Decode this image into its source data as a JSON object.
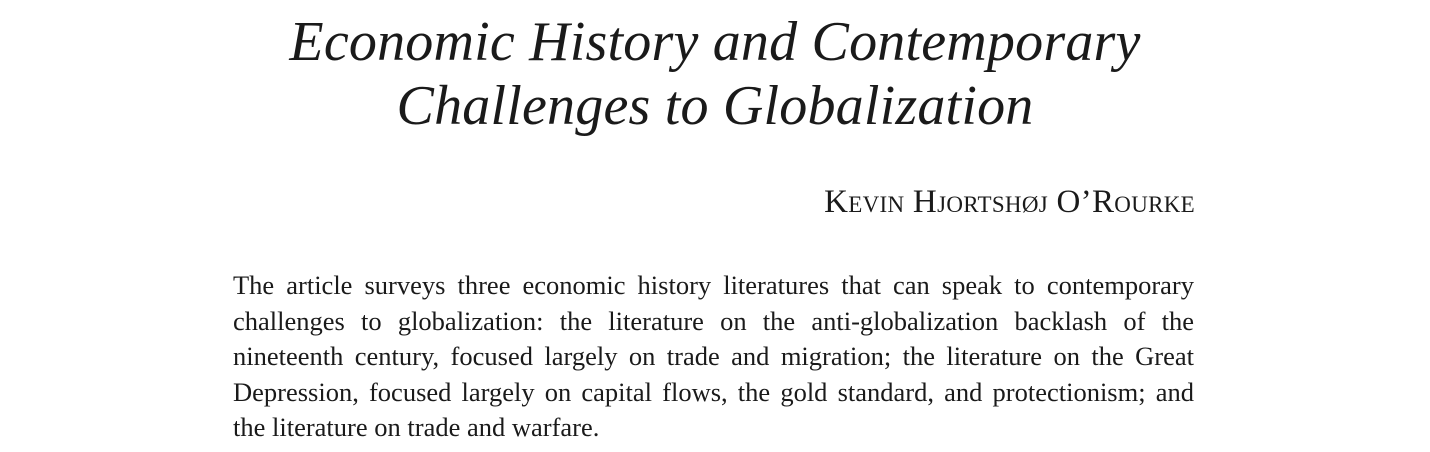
{
  "paper": {
    "title_line_1": "Economic History and Contemporary",
    "title_line_2": "Challenges to Globalization",
    "author": "Kevin Hjortshøj O’Rourke",
    "abstract": "The article surveys three economic history literatures that can speak to contemporary challenges to globalization: the literature on the anti-globalization backlash of the nineteenth century, focused largely on trade and migration; the literature on the Great Depression, focused largely on capital flows, the gold standard, and protectionism; and the literature on trade and warfare."
  }
}
